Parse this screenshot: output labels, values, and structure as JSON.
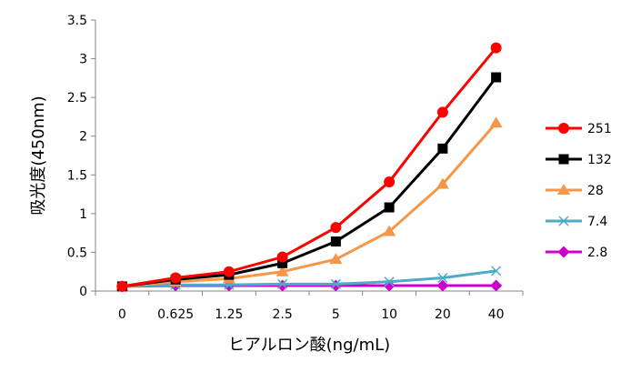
{
  "chart_data": {
    "type": "line",
    "title": "",
    "xlabel": "ヒアルロン酸(ng/mL)",
    "ylabel": "吸光度(450nm)",
    "categories": [
      "0",
      "0.625",
      "1.25",
      "2.5",
      "5",
      "10",
      "20",
      "40"
    ],
    "ylim": [
      0,
      3.5
    ],
    "yticks": [
      "0",
      "0.5",
      "1",
      "1.5",
      "2",
      "2.5",
      "3",
      "3.5"
    ],
    "grid": false,
    "legend_position": "right",
    "series": [
      {
        "name": "251",
        "color": "#ff0000",
        "marker": "circle",
        "values": [
          0.06,
          0.17,
          0.25,
          0.44,
          0.82,
          1.41,
          2.31,
          3.14
        ]
      },
      {
        "name": "132",
        "color": "#000000",
        "marker": "square",
        "values": [
          0.06,
          0.15,
          0.21,
          0.36,
          0.64,
          1.08,
          1.84,
          2.76
        ]
      },
      {
        "name": "28",
        "color": "#f79646",
        "marker": "triangle",
        "values": [
          0.06,
          0.12,
          0.16,
          0.25,
          0.41,
          0.77,
          1.38,
          2.17
        ]
      },
      {
        "name": "7.4",
        "color": "#4bacc6",
        "marker": "x",
        "values": [
          0.06,
          0.08,
          0.08,
          0.09,
          0.09,
          0.12,
          0.17,
          0.26
        ]
      },
      {
        "name": "2.8",
        "color": "#cc00cc",
        "marker": "diamond",
        "values": [
          0.06,
          0.07,
          0.07,
          0.07,
          0.07,
          0.07,
          0.07,
          0.07
        ]
      }
    ]
  }
}
